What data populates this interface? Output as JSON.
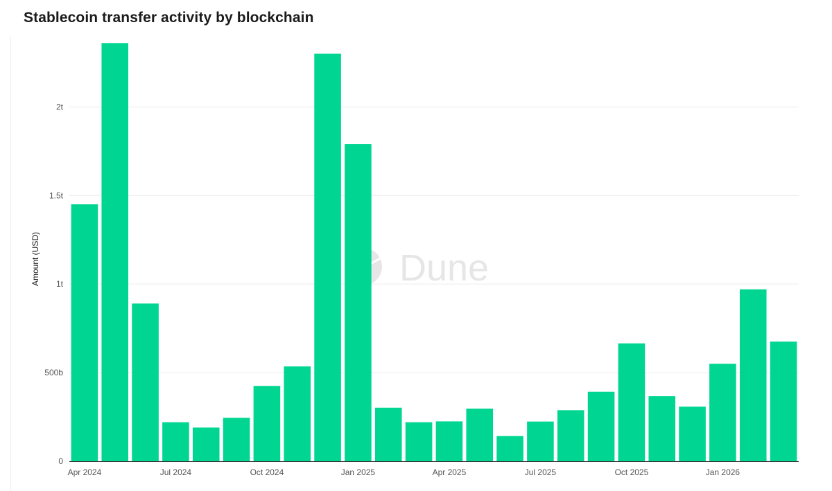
{
  "page": {
    "title": "Stablecoin transfer activity by blockchain",
    "watermark": "Dune"
  },
  "chart_data": {
    "type": "bar",
    "title": "Stablecoin transfer activity by blockchain",
    "ylabel": "Amount (USD)",
    "xlabel": "",
    "ylim": [
      0,
      2400000000000
    ],
    "grid": true,
    "bar_color": "#00d691",
    "categories": [
      "2024-04",
      "2024-05",
      "2024-06",
      "2024-07",
      "2024-08",
      "2024-09",
      "2024-10",
      "2024-11",
      "2024-12",
      "2025-01",
      "2025-02",
      "2025-03",
      "2025-04",
      "2025-05",
      "2025-06",
      "2025-07",
      "2025-08",
      "2025-09",
      "2025-10",
      "2025-11",
      "2025-12",
      "2026-01",
      "2026-02",
      "2026-03"
    ],
    "values": [
      1450000000000,
      2360000000000,
      890000000000,
      220000000000,
      190000000000,
      245000000000,
      425000000000,
      535000000000,
      2300000000000,
      1790000000000,
      302000000000,
      220000000000,
      225000000000,
      297000000000,
      142000000000,
      224000000000,
      288000000000,
      392000000000,
      665000000000,
      367000000000,
      308000000000,
      550000000000,
      970000000000,
      675000000000
    ],
    "y_ticks": [
      {
        "value": 0,
        "label": "0"
      },
      {
        "value": 500000000000,
        "label": "500b"
      },
      {
        "value": 1000000000000,
        "label": "1t"
      },
      {
        "value": 1500000000000,
        "label": "1.5t"
      },
      {
        "value": 2000000000000,
        "label": "2t"
      }
    ],
    "x_ticks": [
      {
        "category": "2024-04",
        "label": "Apr 2024"
      },
      {
        "category": "2024-07",
        "label": "Jul 2024"
      },
      {
        "category": "2024-10",
        "label": "Oct 2024"
      },
      {
        "category": "2025-01",
        "label": "Jan 2025"
      },
      {
        "category": "2025-04",
        "label": "Apr 2025"
      },
      {
        "category": "2025-07",
        "label": "Jul 2025"
      },
      {
        "category": "2025-10",
        "label": "Oct 2025"
      },
      {
        "category": "2026-01",
        "label": "Jan 2026"
      }
    ]
  }
}
